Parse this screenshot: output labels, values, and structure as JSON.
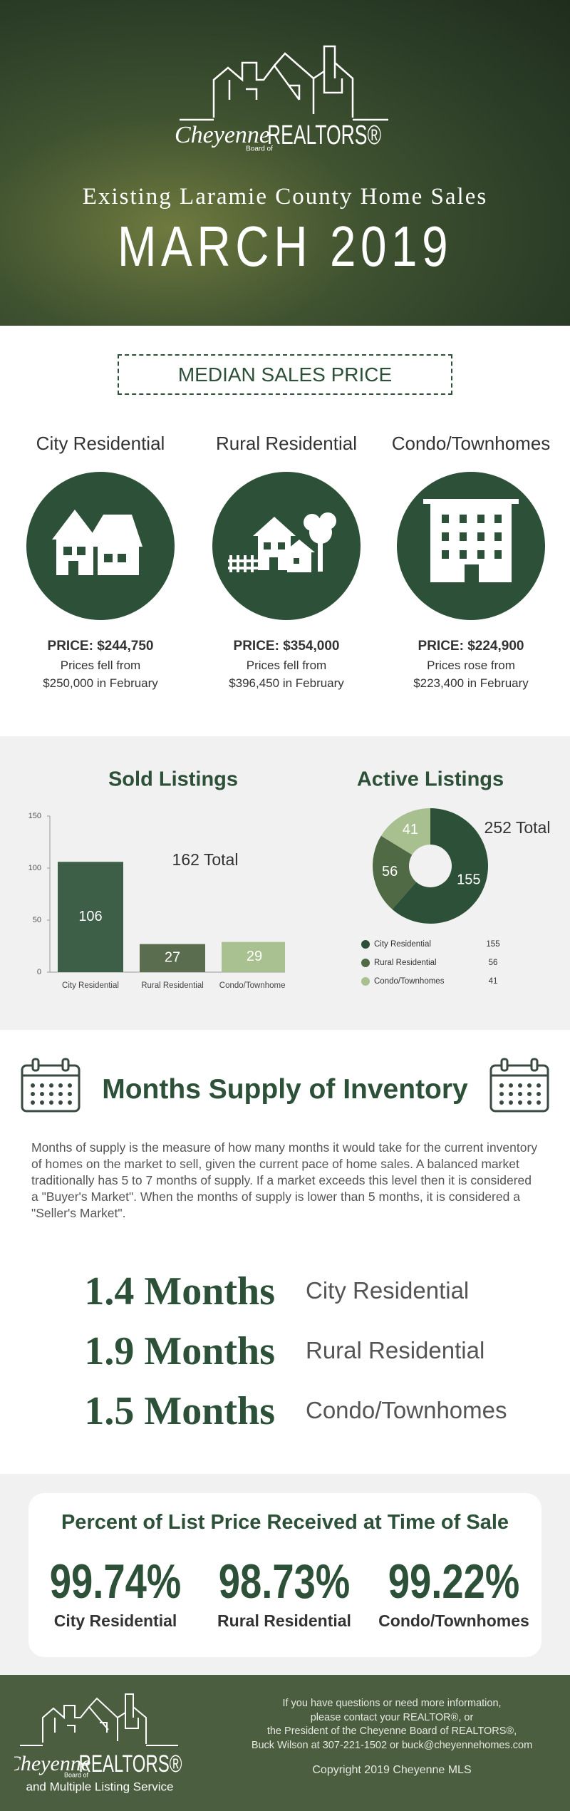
{
  "header": {
    "logo": {
      "script": "Cheyenne",
      "board": "Board of",
      "name": "REALTORS®"
    },
    "subtitle": "Existing Laramie County Home Sales",
    "title": "MARCH 2019"
  },
  "median": {
    "heading": "MEDIAN SALES PRICE",
    "items": [
      {
        "label": "City Residential",
        "price": "PRICE: $244,750",
        "change": "Prices fell from",
        "previous": "$250,000 in February"
      },
      {
        "label": "Rural Residential",
        "price": "PRICE: $354,000",
        "change": "Prices fell from",
        "previous": "$396,450 in February"
      },
      {
        "label": "Condo/Townhomes",
        "price": "PRICE: $224,900",
        "change": "Prices rose from",
        "previous": "$223,400 in February"
      }
    ]
  },
  "chart_data": [
    {
      "type": "bar",
      "title": "Sold Listings",
      "categories": [
        "City Residential",
        "Rural Residential",
        "Condo/Townhomes"
      ],
      "values": [
        106,
        27,
        29
      ],
      "colors": [
        "#3d5f47",
        "#5a6e4f",
        "#a9c191"
      ],
      "ylim": [
        0,
        150
      ],
      "yticks": [
        0,
        50,
        100,
        150
      ],
      "annotation": "162 Total"
    },
    {
      "type": "donut",
      "title": "Active Listings",
      "categories": [
        "City Residential",
        "Rural Residential",
        "Condo/Townhomes"
      ],
      "values": [
        155,
        56,
        41
      ],
      "colors": [
        "#2d5138",
        "#4f6a45",
        "#a8c090"
      ],
      "annotation": "252 Total"
    }
  ],
  "supply": {
    "title": "Months Supply of Inventory",
    "text": "Months of supply is the measure of how many months it would take for the current inventory of homes on the market to sell,  given the current pace of home sales. A balanced market traditionally has 5 to 7 months of supply. If a market exceeds this level then it is considered a \"Buyer's Market\". When the months of supply is lower than 5 months, it is considered a \"Seller's Market\".",
    "rows": [
      {
        "value": "1.4 Months",
        "label": "City Residential"
      },
      {
        "value": "1.9 Months",
        "label": "Rural Residential"
      },
      {
        "value": "1.5 Months",
        "label": "Condo/Townhomes"
      }
    ]
  },
  "percent": {
    "title": "Percent of List Price Received at Time of Sale",
    "items": [
      {
        "value": "99.74%",
        "label": "City Residential"
      },
      {
        "value": "98.73%",
        "label": "Rural Residential"
      },
      {
        "value": "99.22%",
        "label": "Condo/Townhomes"
      }
    ]
  },
  "footer": {
    "logo": {
      "script": "Cheyenne",
      "board": "Board of",
      "name": "REALTORS®",
      "tagline": "and Multiple Listing Service"
    },
    "lines": [
      "If you have questions or need more information,",
      "please contact your REALTOR®, or",
      "the President of the Cheyenne Board of REALTORS®,",
      "Buck Wilson at 307-221-1502 or buck@cheyennehomes.com"
    ],
    "copyright": "Copyright 2019 Cheyenne MLS"
  }
}
